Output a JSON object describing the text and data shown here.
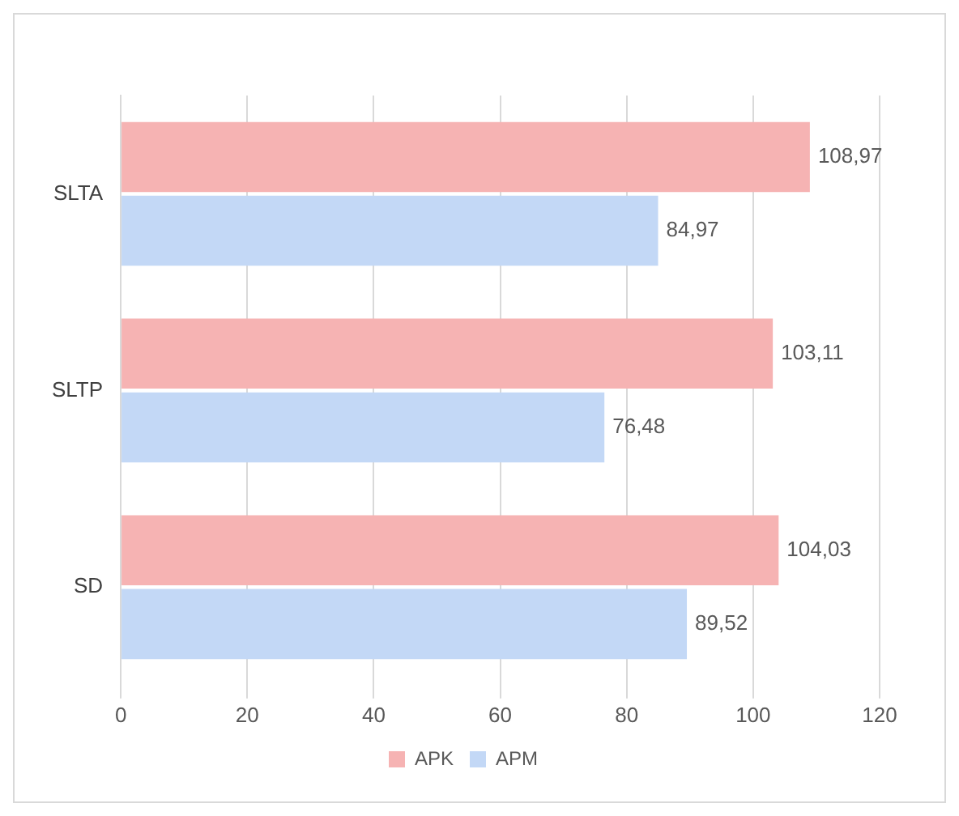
{
  "chart_data": {
    "type": "bar",
    "orientation": "horizontal",
    "categories": [
      "SLTA",
      "SLTP",
      "SD"
    ],
    "series": [
      {
        "name": "APK",
        "color": "#f6b3b3",
        "values": [
          108.97,
          103.11,
          104.03
        ],
        "value_labels": [
          "108,97",
          "103,11",
          "104,03"
        ]
      },
      {
        "name": "APM",
        "color": "#c3d8f6",
        "values": [
          84.97,
          76.48,
          89.52
        ],
        "value_labels": [
          "84,97",
          "76,48",
          "89,52"
        ]
      }
    ],
    "xlim": [
      0,
      120
    ],
    "xticks": [
      0,
      20,
      40,
      60,
      80,
      100,
      120
    ],
    "grid": "x",
    "legend": "bottom"
  }
}
